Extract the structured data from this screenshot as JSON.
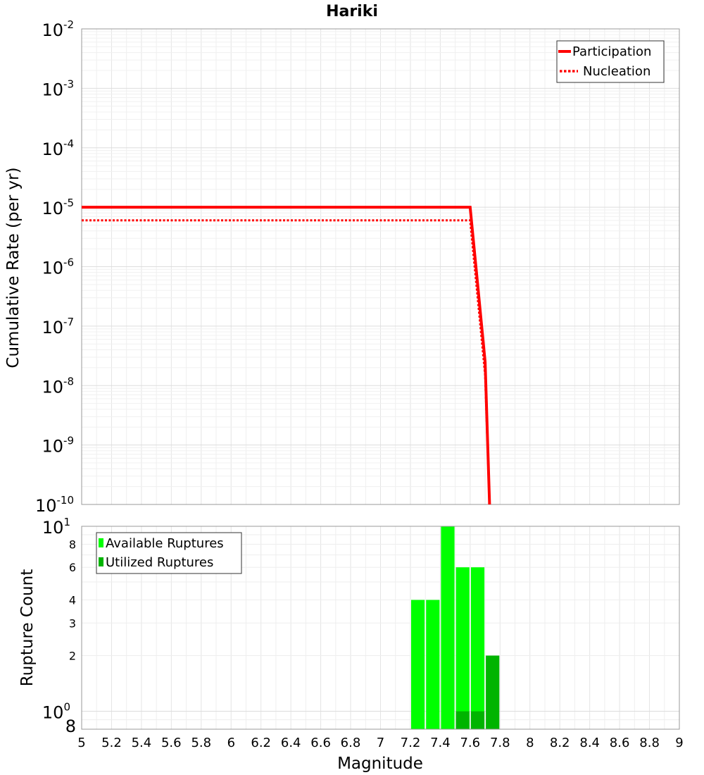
{
  "chart_data": [
    {
      "type": "line",
      "title": "Hariki",
      "xlabel": "",
      "ylabel": "Cumulative Rate (per yr)",
      "xscale": "linear",
      "yscale": "log",
      "xlim": [
        5,
        9
      ],
      "ylim": [
        1e-10,
        0.01
      ],
      "y_tick_exponents": [
        "-2",
        "-3",
        "-4",
        "-5",
        "-6",
        "-7",
        "-8",
        "-9",
        "-10"
      ],
      "y_tick_base": "10",
      "grid": true,
      "legend": {
        "placement": "top-right",
        "entries": [
          "Participation",
          "Nucleation"
        ]
      },
      "series": [
        {
          "name": "Participation",
          "color": "#ff0000",
          "style": "solid",
          "points": [
            [
              5.0,
              1e-05
            ],
            [
              7.6,
              1e-05
            ],
            [
              7.65,
              5e-07
            ],
            [
              7.7,
              2.5e-08
            ],
            [
              7.73,
              1e-10
            ]
          ]
        },
        {
          "name": "Nucleation",
          "color": "#ff0000",
          "style": "dotted",
          "points": [
            [
              5.0,
              6e-06
            ],
            [
              7.6,
              6e-06
            ],
            [
              7.65,
              3e-07
            ],
            [
              7.7,
              1.5e-08
            ],
            [
              7.73,
              1e-10
            ]
          ]
        }
      ]
    },
    {
      "type": "bar",
      "title": "",
      "xlabel": "Magnitude",
      "ylabel": "Rupture Count",
      "xscale": "linear",
      "yscale": "log",
      "xlim": [
        5,
        9
      ],
      "ylim": [
        0.8,
        10
      ],
      "x_ticks": [
        "5",
        "5.2",
        "5.4",
        "5.6",
        "5.8",
        "6",
        "6.2",
        "6.4",
        "6.6",
        "6.8",
        "7",
        "7.2",
        "7.4",
        "7.6",
        "7.8",
        "8",
        "8.2",
        "8.4",
        "8.6",
        "8.8",
        "9"
      ],
      "y_major_ticks": [
        {
          "value": 1,
          "base": "10",
          "exp": "0"
        },
        {
          "value": 10,
          "base": "10",
          "exp": "1"
        }
      ],
      "y_minor_labels": [
        "8",
        "8",
        "6",
        "4",
        "3",
        "2"
      ],
      "y_minor_values": [
        8,
        0.8,
        6,
        4,
        3,
        2
      ],
      "grid": true,
      "legend": {
        "placement": "top-left",
        "entries": [
          "Available Ruptures",
          "Utilized Ruptures"
        ]
      },
      "bar_width": 0.1,
      "series": [
        {
          "name": "Available Ruptures",
          "color": "#00ff00",
          "x": [
            7.25,
            7.35,
            7.45,
            7.55,
            7.65
          ],
          "values": [
            4,
            4,
            10,
            6,
            6
          ]
        },
        {
          "name": "Utilized Ruptures",
          "color": "#00b400",
          "x": [
            7.55,
            7.65,
            7.75
          ],
          "values": [
            1,
            1,
            2
          ]
        }
      ]
    }
  ]
}
